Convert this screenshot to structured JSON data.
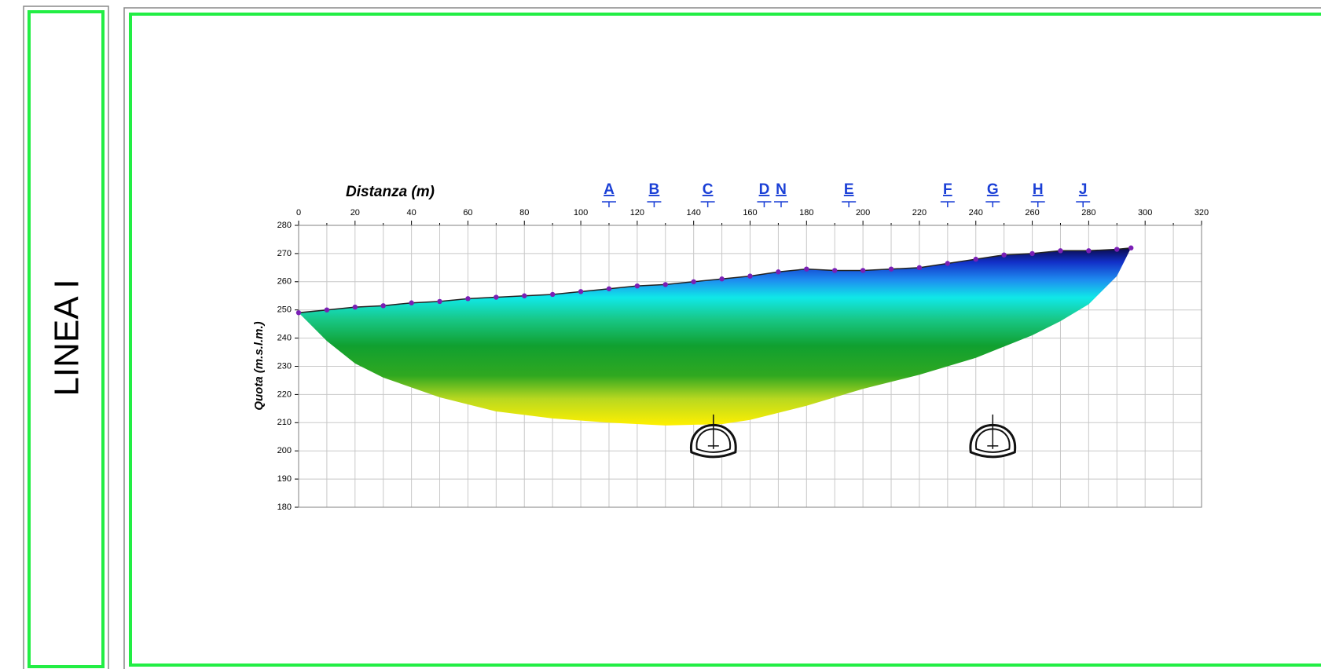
{
  "panel_title": "LINEA I",
  "chart_data": {
    "type": "section",
    "xlabel": "Distanza (m)",
    "ylabel": "Quota (m.s.l.m.)",
    "xlim": [
      0,
      320
    ],
    "ylim": [
      180,
      280
    ],
    "xticks": [
      0,
      20,
      40,
      60,
      80,
      100,
      120,
      140,
      160,
      180,
      200,
      220,
      240,
      260,
      280,
      300,
      320
    ],
    "xminorticks": [
      10,
      30,
      50,
      70,
      90,
      110,
      130,
      150,
      170,
      190,
      210,
      230,
      250,
      270,
      290,
      310
    ],
    "yticks": [
      180,
      190,
      200,
      210,
      220,
      230,
      240,
      250,
      260,
      270,
      280
    ],
    "grid": true,
    "surface": {
      "color": "#7a1fb5",
      "x": [
        0,
        10,
        20,
        30,
        40,
        50,
        60,
        70,
        80,
        90,
        100,
        110,
        120,
        130,
        140,
        150,
        160,
        170,
        180,
        190,
        200,
        210,
        220,
        230,
        240,
        250,
        260,
        270,
        280,
        290,
        295
      ],
      "y": [
        249,
        250,
        251,
        251.5,
        252.5,
        253,
        254,
        254.5,
        255,
        255.5,
        256.5,
        257.5,
        258.5,
        259,
        260,
        261,
        262,
        263.5,
        264.5,
        264,
        264,
        264.5,
        265,
        266.5,
        268,
        269.5,
        270,
        271,
        271,
        271.5,
        272
      ]
    },
    "base": {
      "x": [
        295,
        290,
        280,
        270,
        260,
        250,
        240,
        220,
        200,
        180,
        160,
        150,
        130,
        110,
        90,
        70,
        50,
        30,
        20,
        10,
        3,
        0
      ],
      "y": [
        272,
        262,
        252,
        246,
        241,
        237,
        233,
        227,
        222,
        216,
        211,
        209.5,
        209,
        210,
        211.5,
        214,
        219,
        226,
        231,
        239,
        246,
        249
      ]
    },
    "markers": [
      {
        "label": "A",
        "x": 110
      },
      {
        "label": "B",
        "x": 126
      },
      {
        "label": "C",
        "x": 145
      },
      {
        "label": "D",
        "x": 165
      },
      {
        "label": "N",
        "x": 171
      },
      {
        "label": "E",
        "x": 195
      },
      {
        "label": "F",
        "x": 230
      },
      {
        "label": "G",
        "x": 246
      },
      {
        "label": "H",
        "x": 262
      },
      {
        "label": "J",
        "x": 278
      }
    ],
    "tunnels": [
      {
        "x": 147,
        "y": 204
      },
      {
        "x": 246,
        "y": 204
      }
    ]
  }
}
